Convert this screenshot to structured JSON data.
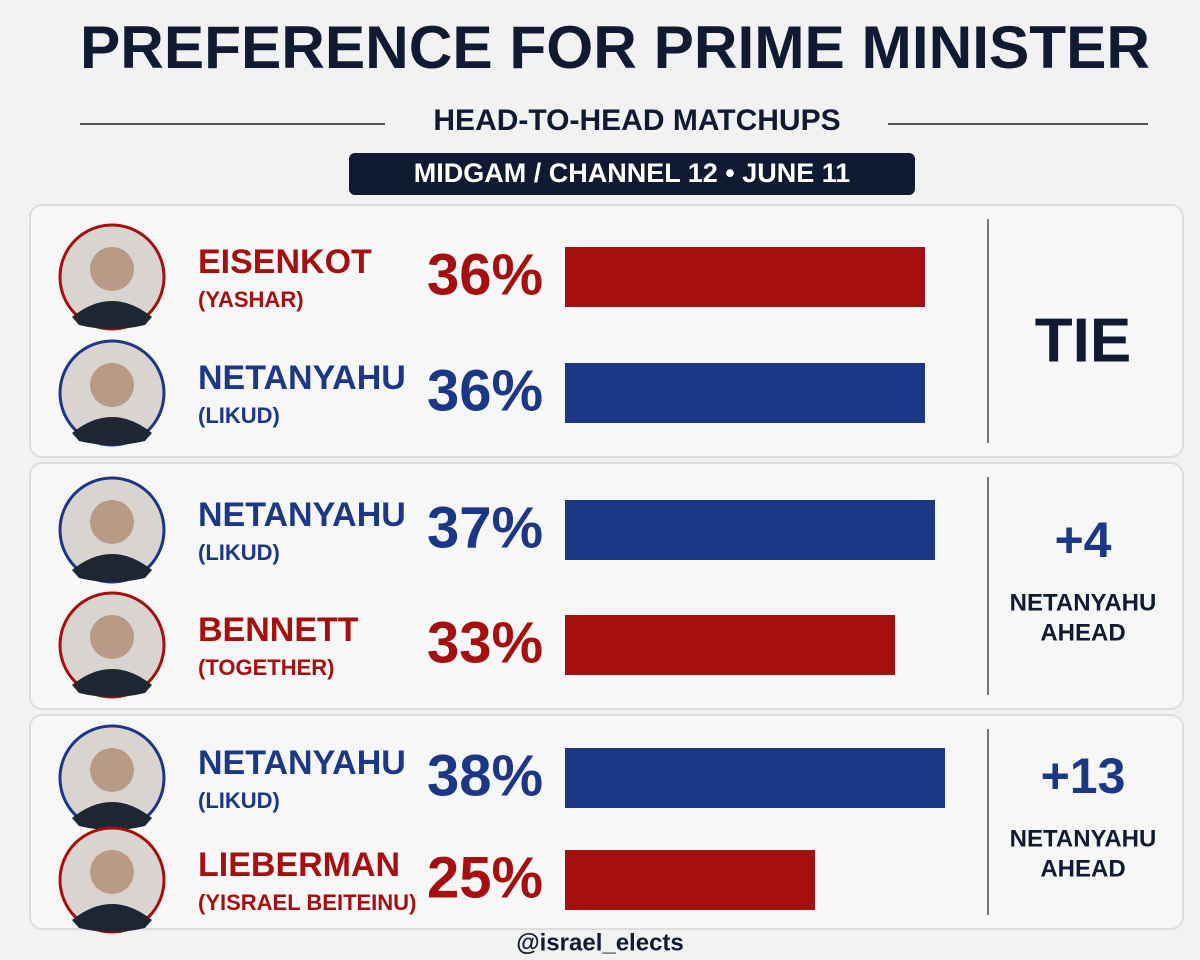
{
  "header": {
    "title": "PREFERENCE FOR PRIME MINISTER",
    "subtitle": "HEAD-TO-HEAD MATCHUPS",
    "source": "MIDGAM / CHANNEL 12 • JUNE 11"
  },
  "matchups": [
    {
      "candidates": [
        {
          "name": "EISENKOT",
          "party": "(YASHAR)",
          "value": 36,
          "value_label": "36%",
          "color": "#a50f0f"
        },
        {
          "name": "NETANYAHU",
          "party": "(LIKUD)",
          "value": 36,
          "value_label": "36%",
          "color": "#1b3786"
        }
      ],
      "verdict": "TIE"
    },
    {
      "candidates": [
        {
          "name": "NETANYAHU",
          "party": "(LIKUD)",
          "value": 37,
          "value_label": "37%",
          "color": "#1b3786"
        },
        {
          "name": "BENNETT",
          "party": "(TOGETHER)",
          "value": 33,
          "value_label": "33%",
          "color": "#a50f0f"
        }
      ],
      "verdict": "+4",
      "verdict_note": [
        "NETANYAHU",
        "AHEAD"
      ]
    },
    {
      "candidates": [
        {
          "name": "NETANYAHU",
          "party": "(LIKUD)",
          "value": 38,
          "value_label": "38%",
          "color": "#1b3786"
        },
        {
          "name": "LIEBERMAN",
          "party": "(YISRAEL BEITEINU)",
          "value": 25,
          "value_label": "25%",
          "color": "#a50f0f"
        }
      ],
      "verdict": "+13",
      "verdict_note": [
        "NETANYAHU",
        "AHEAD"
      ]
    }
  ],
  "footer": "@israel_elects"
}
